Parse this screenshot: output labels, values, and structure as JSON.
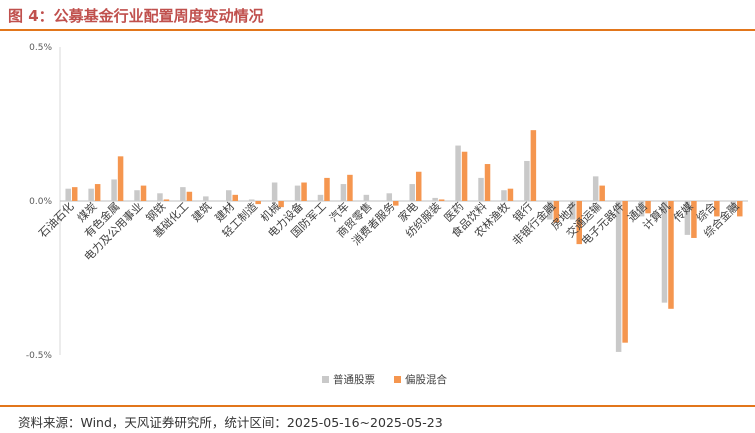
{
  "figure": {
    "title": "图 4：公募基金行业配置周度变动情况",
    "source": "资料来源：Wind，天风证券研究所，统计区间：2025-05-16~2025-05-23"
  },
  "chart_data": {
    "type": "bar",
    "title": "",
    "xlabel": "",
    "ylabel": "",
    "ylim": [
      -0.5,
      0.5
    ],
    "y_ticks": [
      "0.5%",
      "0.0%",
      "-0.5%"
    ],
    "y_tick_values": [
      0.5,
      0.0,
      -0.5
    ],
    "legend_position": "bottom",
    "categories": [
      "石油石化",
      "煤炭",
      "有色金属",
      "电力及公用事业",
      "钢铁",
      "基础化工",
      "建筑",
      "建材",
      "轻工制造",
      "机械",
      "电力设备",
      "国防军工",
      "汽车",
      "商贸零售",
      "消费者服务",
      "家电",
      "纺织服装",
      "医药",
      "食品饮料",
      "农林渔牧",
      "银行",
      "非银行金融",
      "房地产",
      "交通运输",
      "电子元器件",
      "通信",
      "计算机",
      "传媒",
      "综合",
      "综合金融"
    ],
    "series": [
      {
        "name": "普通股票",
        "color": "#c9c9c9",
        "values": [
          0.04,
          0.04,
          0.07,
          0.035,
          0.025,
          0.045,
          0.015,
          0.035,
          0.005,
          0.06,
          0.05,
          0.02,
          0.055,
          0.02,
          0.025,
          0.055,
          0.01,
          0.18,
          0.075,
          0.035,
          0.13,
          -0.06,
          -0.06,
          0.08,
          -0.49,
          -0.05,
          -0.33,
          -0.11,
          0.0,
          -0.03
        ]
      },
      {
        "name": "偏股混合",
        "color": "#f5964f",
        "values": [
          0.045,
          0.055,
          0.145,
          0.05,
          0.005,
          0.03,
          0.0,
          0.02,
          -0.01,
          -0.02,
          0.06,
          0.075,
          0.085,
          0.0,
          -0.015,
          0.095,
          0.005,
          0.16,
          0.12,
          0.04,
          0.23,
          -0.07,
          -0.14,
          0.05,
          -0.46,
          -0.04,
          -0.35,
          -0.12,
          -0.05,
          -0.05
        ]
      }
    ],
    "grid": false
  }
}
